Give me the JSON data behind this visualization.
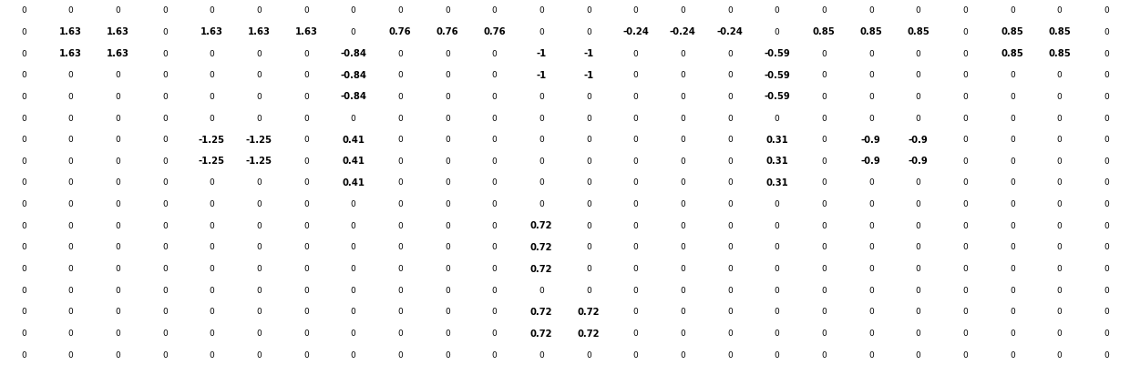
{
  "matrix": [
    [
      0,
      0,
      0,
      0,
      0,
      0,
      0,
      0,
      0,
      0,
      0,
      0,
      0,
      0,
      0,
      0,
      0,
      0,
      0,
      0,
      0,
      0,
      0,
      0
    ],
    [
      0,
      1.63,
      1.63,
      0,
      1.63,
      1.63,
      1.63,
      0,
      0.76,
      0.76,
      0.76,
      0,
      0,
      -0.24,
      -0.24,
      -0.24,
      0,
      0.85,
      0.85,
      0.85,
      0,
      0.85,
      0.85,
      0
    ],
    [
      0,
      1.63,
      1.63,
      0,
      0,
      0,
      0,
      -0.84,
      0,
      0,
      0,
      -1,
      -1,
      0,
      0,
      0,
      -0.59,
      0,
      0,
      0,
      0,
      0.85,
      0.85,
      0
    ],
    [
      0,
      0,
      0,
      0,
      0,
      0,
      0,
      -0.84,
      0,
      0,
      0,
      -1,
      -1,
      0,
      0,
      0,
      -0.59,
      0,
      0,
      0,
      0,
      0,
      0,
      0
    ],
    [
      0,
      0,
      0,
      0,
      0,
      0,
      0,
      -0.84,
      0,
      0,
      0,
      0,
      0,
      0,
      0,
      0,
      -0.59,
      0,
      0,
      0,
      0,
      0,
      0,
      0
    ],
    [
      0,
      0,
      0,
      0,
      0,
      0,
      0,
      0,
      0,
      0,
      0,
      0,
      0,
      0,
      0,
      0,
      0,
      0,
      0,
      0,
      0,
      0,
      0,
      0
    ],
    [
      0,
      0,
      0,
      0,
      -1.25,
      -1.25,
      0,
      0.41,
      0,
      0,
      0,
      0,
      0,
      0,
      0,
      0,
      0.31,
      0,
      -0.9,
      -0.9,
      0,
      0,
      0,
      0
    ],
    [
      0,
      0,
      0,
      0,
      -1.25,
      -1.25,
      0,
      0.41,
      0,
      0,
      0,
      0,
      0,
      0,
      0,
      0,
      0.31,
      0,
      -0.9,
      -0.9,
      0,
      0,
      0,
      0
    ],
    [
      0,
      0,
      0,
      0,
      0,
      0,
      0,
      0.41,
      0,
      0,
      0,
      0,
      0,
      0,
      0,
      0,
      0.31,
      0,
      0,
      0,
      0,
      0,
      0,
      0
    ],
    [
      0,
      0,
      0,
      0,
      0,
      0,
      0,
      0,
      0,
      0,
      0,
      0,
      0,
      0,
      0,
      0,
      0,
      0,
      0,
      0,
      0,
      0,
      0,
      0
    ],
    [
      0,
      0,
      0,
      0,
      0,
      0,
      0,
      0,
      0,
      0,
      0,
      0.72,
      0,
      0,
      0,
      0,
      0,
      0,
      0,
      0,
      0,
      0,
      0,
      0
    ],
    [
      0,
      0,
      0,
      0,
      0,
      0,
      0,
      0,
      0,
      0,
      0,
      0.72,
      0,
      0,
      0,
      0,
      0,
      0,
      0,
      0,
      0,
      0,
      0,
      0
    ],
    [
      0,
      0,
      0,
      0,
      0,
      0,
      0,
      0,
      0,
      0,
      0,
      0.72,
      0,
      0,
      0,
      0,
      0,
      0,
      0,
      0,
      0,
      0,
      0,
      0
    ],
    [
      0,
      0,
      0,
      0,
      0,
      0,
      0,
      0,
      0,
      0,
      0,
      0,
      0,
      0,
      0,
      0,
      0,
      0,
      0,
      0,
      0,
      0,
      0,
      0
    ],
    [
      0,
      0,
      0,
      0,
      0,
      0,
      0,
      0,
      0,
      0,
      0,
      0.72,
      0.72,
      0,
      0,
      0,
      0,
      0,
      0,
      0,
      0,
      0,
      0,
      0
    ],
    [
      0,
      0,
      0,
      0,
      0,
      0,
      0,
      0,
      0,
      0,
      0,
      0.72,
      0.72,
      0,
      0,
      0,
      0,
      0,
      0,
      0,
      0,
      0,
      0,
      0
    ],
    [
      0,
      0,
      0,
      0,
      0,
      0,
      0,
      0,
      0,
      0,
      0,
      0,
      0,
      0,
      0,
      0,
      0,
      0,
      0,
      0,
      0,
      0,
      0,
      0
    ]
  ],
  "background_color": "#ffffff",
  "fontsize_nonzero": 7.2,
  "fontsize_zero": 6.5,
  "bold_threshold": 0.001,
  "nrows": 17,
  "ncols": 24
}
